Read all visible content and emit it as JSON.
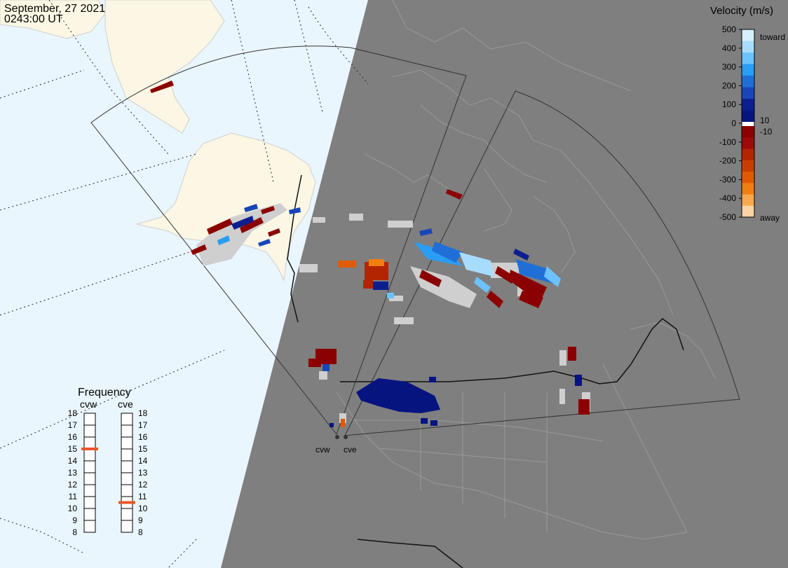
{
  "header": {
    "date": "September, 27 2021",
    "time": "0243:00 UT"
  },
  "colorbar": {
    "title": "Velocity (m/s)",
    "toward_label": "toward",
    "away_label": "away",
    "ticks": [
      "500",
      "400",
      "300",
      "200",
      "100",
      "0",
      "-100",
      "-200",
      "-300",
      "-400",
      "-500"
    ],
    "inner_ticks": [
      "10",
      "-10"
    ],
    "colors_toward": [
      "#d6eeff",
      "#a8dcff",
      "#6cc2ff",
      "#2a9df4",
      "#1f6fd6",
      "#1846b8",
      "#0d1f8f",
      "#061480"
    ],
    "colors_away": [
      "#8b0000",
      "#9e0a0a",
      "#b32400",
      "#c93d00",
      "#e05a00",
      "#f07e10",
      "#f9a94d",
      "#fdd3a6"
    ]
  },
  "frequency": {
    "title": "Frequency",
    "radars": [
      "cvw",
      "cve"
    ],
    "scale": [
      "18",
      "17",
      "16",
      "15",
      "14",
      "13",
      "12",
      "11",
      "10",
      "9",
      "8"
    ],
    "cvw_mhz": 15,
    "cve_mhz": 10.5,
    "marker_color": "#e8562a"
  },
  "map": {
    "ocean_color": "#eaf6fd",
    "land_color": "#fbf7e4",
    "night_color": "#7f7f7f",
    "ground_scatter_color": "#cfcfcf",
    "site_labels": [
      "cvw",
      "cve"
    ]
  }
}
